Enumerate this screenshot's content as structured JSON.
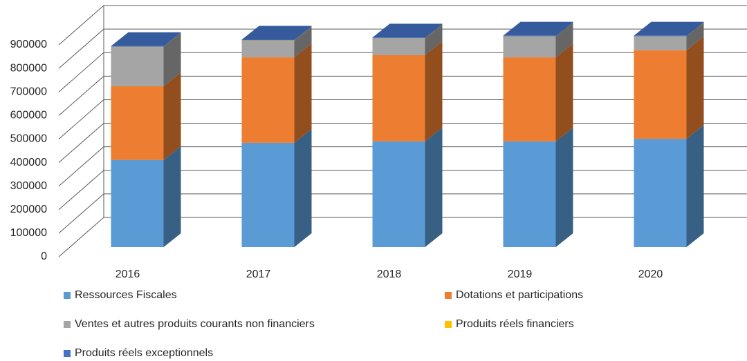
{
  "chart_data": {
    "type": "bar3d_stacked",
    "categories": [
      "2016",
      "2017",
      "2018",
      "2019",
      "2020"
    ],
    "series": [
      {
        "name": "Ressources Fiscales",
        "color": "#5b9bd5",
        "values": [
          370000,
          443000,
          449000,
          449000,
          460000
        ]
      },
      {
        "name": "Dotations et participations",
        "color": "#ed7d31",
        "values": [
          313000,
          363000,
          366000,
          357000,
          376000
        ]
      },
      {
        "name": "Ventes et autres produits courants non financiers",
        "color": "#a5a5a5",
        "values": [
          167000,
          71000,
          71000,
          88000,
          58000
        ]
      },
      {
        "name": "Produits réels financiers",
        "color": "#ffc000",
        "values": [
          1000,
          1000,
          1000,
          1000,
          1000
        ]
      },
      {
        "name": "Produits réels exceptionnels",
        "color": "#4472c4",
        "values": [
          3000,
          3000,
          3000,
          3000,
          3000
        ]
      }
    ],
    "ylim": [
      0,
      900000
    ],
    "yticks": [
      0,
      100000,
      200000,
      300000,
      400000,
      500000,
      600000,
      700000,
      800000,
      900000
    ],
    "grid": true,
    "legend": "bottom"
  }
}
